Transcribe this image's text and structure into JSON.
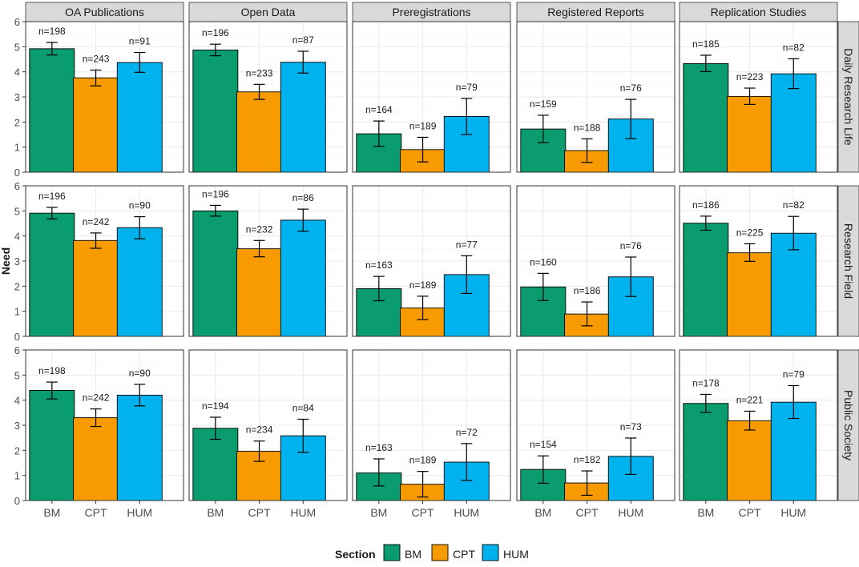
{
  "colors": {
    "BM": "#0a9b6e",
    "CPT": "#f79b00",
    "HUM": "#00b2ed",
    "strip_bg": "#d9d9d9",
    "grid": "#ebebeb"
  },
  "chart_data": {
    "type": "bar",
    "subtype": "faceted-grouped-bar-with-error-bars",
    "ylabel": "Need",
    "xlabel": "",
    "ylim": [
      0,
      6
    ],
    "yticks": [
      "0",
      "1",
      "2",
      "3",
      "4",
      "5",
      "6"
    ],
    "grid": true,
    "legend_position": "bottom",
    "legend_title": "Section",
    "categories": [
      "BM",
      "CPT",
      "HUM"
    ],
    "columns": [
      "OA Publications",
      "Open Data",
      "Preregistrations",
      "Registered Reports",
      "Replication Studies"
    ],
    "rows": [
      "Daily Research Life",
      "Research Field",
      "Public Society"
    ],
    "panels": [
      {
        "row": 0,
        "col": 0,
        "values": [
          4.92,
          3.76,
          4.37
        ],
        "err_low": [
          4.67,
          3.44,
          3.98
        ],
        "err_high": [
          5.17,
          4.07,
          4.77
        ],
        "n_labels": [
          "n=198",
          "n=243",
          "n=91"
        ]
      },
      {
        "row": 0,
        "col": 1,
        "values": [
          4.87,
          3.2,
          4.38
        ],
        "err_low": [
          4.64,
          2.9,
          3.95
        ],
        "err_high": [
          5.1,
          3.5,
          4.82
        ],
        "n_labels": [
          "n=196",
          "n=233",
          "n=87"
        ]
      },
      {
        "row": 0,
        "col": 2,
        "values": [
          1.53,
          0.9,
          2.22
        ],
        "err_low": [
          1.03,
          0.41,
          1.5
        ],
        "err_high": [
          2.04,
          1.39,
          2.94
        ],
        "n_labels": [
          "n=164",
          "n=189",
          "n=79"
        ]
      },
      {
        "row": 0,
        "col": 3,
        "values": [
          1.72,
          0.86,
          2.12
        ],
        "err_low": [
          1.18,
          0.39,
          1.34
        ],
        "err_high": [
          2.27,
          1.33,
          2.9
        ],
        "n_labels": [
          "n=159",
          "n=188",
          "n=76"
        ]
      },
      {
        "row": 0,
        "col": 4,
        "values": [
          4.33,
          3.02,
          3.92
        ],
        "err_low": [
          4.01,
          2.7,
          3.33
        ],
        "err_high": [
          4.66,
          3.35,
          4.52
        ],
        "n_labels": [
          "n=185",
          "n=223",
          "n=82"
        ]
      },
      {
        "row": 1,
        "col": 0,
        "values": [
          4.91,
          3.82,
          4.33
        ],
        "err_low": [
          4.68,
          3.51,
          3.89
        ],
        "err_high": [
          5.14,
          4.12,
          4.77
        ],
        "n_labels": [
          "n=196",
          "n=242",
          "n=90"
        ]
      },
      {
        "row": 1,
        "col": 1,
        "values": [
          5.0,
          3.49,
          4.63
        ],
        "err_low": [
          4.79,
          3.17,
          4.19
        ],
        "err_high": [
          5.22,
          3.82,
          5.07
        ],
        "n_labels": [
          "n=196",
          "n=232",
          "n=86"
        ]
      },
      {
        "row": 1,
        "col": 2,
        "values": [
          1.9,
          1.13,
          2.46
        ],
        "err_low": [
          1.42,
          0.67,
          1.71
        ],
        "err_high": [
          2.39,
          1.6,
          3.21
        ],
        "n_labels": [
          "n=163",
          "n=189",
          "n=77"
        ]
      },
      {
        "row": 1,
        "col": 3,
        "values": [
          1.97,
          0.89,
          2.37
        ],
        "err_low": [
          1.43,
          0.42,
          1.59
        ],
        "err_high": [
          2.51,
          1.37,
          3.16
        ],
        "n_labels": [
          "n=160",
          "n=186",
          "n=76"
        ]
      },
      {
        "row": 1,
        "col": 4,
        "values": [
          4.51,
          3.33,
          4.11
        ],
        "err_low": [
          4.23,
          2.99,
          3.45
        ],
        "err_high": [
          4.79,
          3.69,
          4.78
        ],
        "n_labels": [
          "n=186",
          "n=225",
          "n=82"
        ]
      },
      {
        "row": 2,
        "col": 0,
        "values": [
          4.39,
          3.3,
          4.2
        ],
        "err_low": [
          4.05,
          2.95,
          3.77
        ],
        "err_high": [
          4.72,
          3.65,
          4.63
        ],
        "n_labels": [
          "n=198",
          "n=242",
          "n=90"
        ]
      },
      {
        "row": 2,
        "col": 1,
        "values": [
          2.88,
          1.96,
          2.58
        ],
        "err_low": [
          2.44,
          1.56,
          1.92
        ],
        "err_high": [
          3.32,
          2.37,
          3.24
        ],
        "n_labels": [
          "n=194",
          "n=234",
          "n=84"
        ]
      },
      {
        "row": 2,
        "col": 2,
        "values": [
          1.1,
          0.65,
          1.53
        ],
        "err_low": [
          0.58,
          0.14,
          0.8
        ],
        "err_high": [
          1.66,
          1.16,
          2.27
        ],
        "n_labels": [
          "n=163",
          "n=189",
          "n=72"
        ]
      },
      {
        "row": 2,
        "col": 3,
        "values": [
          1.24,
          0.7,
          1.76
        ],
        "err_low": [
          0.69,
          0.21,
          1.04
        ],
        "err_high": [
          1.78,
          1.18,
          2.49
        ],
        "n_labels": [
          "n=154",
          "n=182",
          "n=73"
        ]
      },
      {
        "row": 2,
        "col": 4,
        "values": [
          3.87,
          3.18,
          3.92
        ],
        "err_low": [
          3.51,
          2.81,
          3.27
        ],
        "err_high": [
          4.23,
          3.56,
          4.58
        ],
        "n_labels": [
          "n=178",
          "n=221",
          "n=79"
        ]
      }
    ]
  }
}
